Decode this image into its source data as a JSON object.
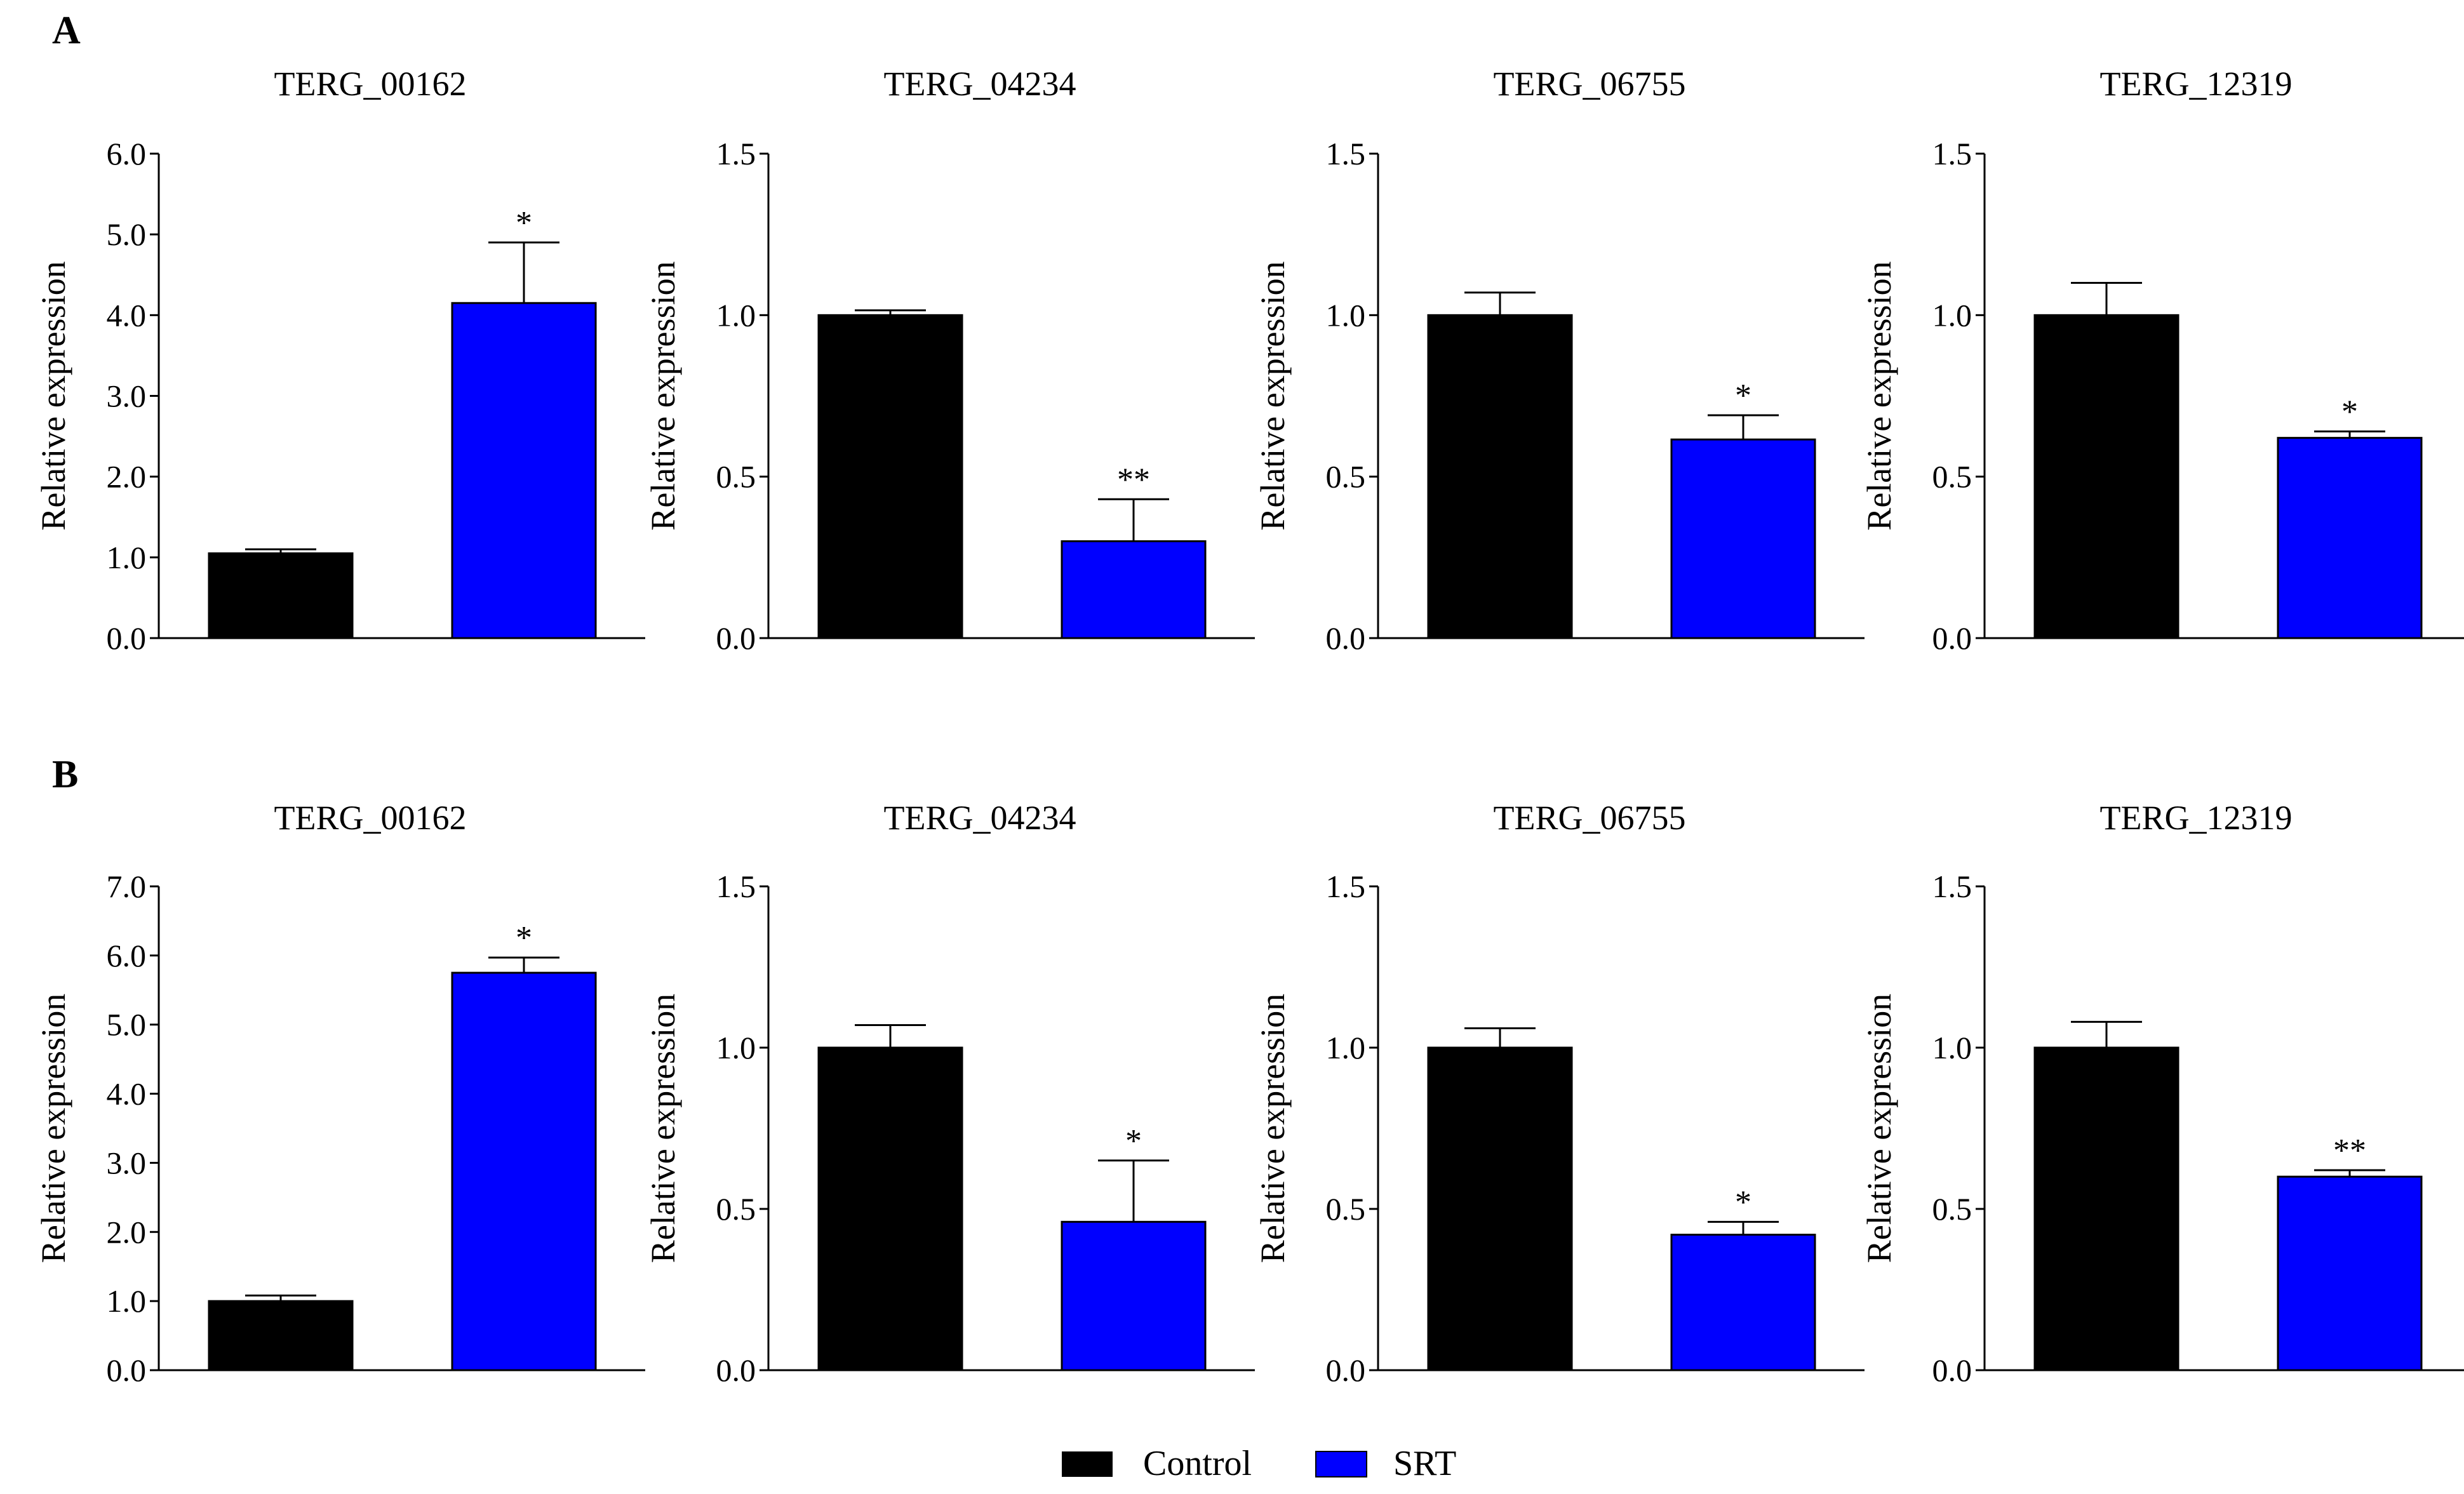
{
  "figure": {
    "panel_labels": [
      "A",
      "B"
    ],
    "legend": [
      {
        "label": "Control",
        "color": "#000000"
      },
      {
        "label": "SRT",
        "color": "#0000ff"
      }
    ]
  },
  "colors": {
    "control": "#000000",
    "srt": "#0000ff",
    "axis": "#000000"
  },
  "chart_data": [
    {
      "type": "bar",
      "panel": "A",
      "title": "TERG_00162",
      "ylabel": "Relative expression",
      "ylim": [
        0,
        6
      ],
      "yticks": [
        "0.0",
        "1.0",
        "2.0",
        "3.0",
        "4.0",
        "5.0",
        "6.0"
      ],
      "categories": [
        "Control",
        "SRT"
      ],
      "values": [
        1.05,
        4.15
      ],
      "errors": [
        0.05,
        0.75
      ],
      "significance": [
        "",
        "*"
      ],
      "grid": false,
      "legend": "bottom-center"
    },
    {
      "type": "bar",
      "panel": "A",
      "title": "TERG_04234",
      "ylabel": "Relative expression",
      "ylim": [
        0,
        1.5
      ],
      "yticks": [
        "0.0",
        "0.5",
        "1.0",
        "1.5"
      ],
      "categories": [
        "Control",
        "SRT"
      ],
      "values": [
        1.0,
        0.3
      ],
      "errors": [
        0.015,
        0.13
      ],
      "significance": [
        "",
        "**"
      ],
      "grid": false,
      "legend": "bottom-center"
    },
    {
      "type": "bar",
      "panel": "A",
      "title": "TERG_06755",
      "ylabel": "Relative expression",
      "ylim": [
        0,
        1.5
      ],
      "yticks": [
        "0.0",
        "0.5",
        "1.0",
        "1.5"
      ],
      "categories": [
        "Control",
        "SRT"
      ],
      "values": [
        1.0,
        0.615
      ],
      "errors": [
        0.07,
        0.075
      ],
      "significance": [
        "",
        "*"
      ],
      "grid": false,
      "legend": "bottom-center"
    },
    {
      "type": "bar",
      "panel": "A",
      "title": "TERG_12319",
      "ylabel": "Relative expression",
      "ylim": [
        0,
        1.5
      ],
      "yticks": [
        "0.0",
        "0.5",
        "1.0",
        "1.5"
      ],
      "categories": [
        "Control",
        "SRT"
      ],
      "values": [
        1.0,
        0.62
      ],
      "errors": [
        0.1,
        0.02
      ],
      "significance": [
        "",
        "*"
      ],
      "grid": false,
      "legend": "bottom-center"
    },
    {
      "type": "bar",
      "panel": "B",
      "title": "TERG_00162",
      "ylabel": "Relative expression",
      "ylim": [
        0,
        7
      ],
      "yticks": [
        "0.0",
        "1.0",
        "2.0",
        "3.0",
        "4.0",
        "5.0",
        "6.0",
        "7.0"
      ],
      "categories": [
        "Control",
        "SRT"
      ],
      "values": [
        1.0,
        5.75
      ],
      "errors": [
        0.08,
        0.22
      ],
      "significance": [
        "",
        "*"
      ],
      "grid": false,
      "legend": "bottom-center"
    },
    {
      "type": "bar",
      "panel": "B",
      "title": "TERG_04234",
      "ylabel": "Relative expression",
      "ylim": [
        0,
        1.5
      ],
      "yticks": [
        "0.0",
        "0.5",
        "1.0",
        "1.5"
      ],
      "categories": [
        "Control",
        "SRT"
      ],
      "values": [
        1.0,
        0.46
      ],
      "errors": [
        0.07,
        0.19
      ],
      "significance": [
        "",
        "*"
      ],
      "grid": false,
      "legend": "bottom-center"
    },
    {
      "type": "bar",
      "panel": "B",
      "title": "TERG_06755",
      "ylabel": "Relative expression",
      "ylim": [
        0,
        1.5
      ],
      "yticks": [
        "0.0",
        "0.5",
        "1.0",
        "1.5"
      ],
      "categories": [
        "Control",
        "SRT"
      ],
      "values": [
        1.0,
        0.42
      ],
      "errors": [
        0.06,
        0.04
      ],
      "significance": [
        "",
        "*"
      ],
      "grid": false,
      "legend": "bottom-center"
    },
    {
      "type": "bar",
      "panel": "B",
      "title": "TERG_12319",
      "ylabel": "Relative expression",
      "ylim": [
        0,
        1.5
      ],
      "yticks": [
        "0.0",
        "0.5",
        "1.0",
        "1.5"
      ],
      "categories": [
        "Control",
        "SRT"
      ],
      "values": [
        1.0,
        0.6
      ],
      "errors": [
        0.08,
        0.02
      ],
      "significance": [
        "",
        "**"
      ],
      "grid": false,
      "legend": "bottom-center"
    }
  ]
}
